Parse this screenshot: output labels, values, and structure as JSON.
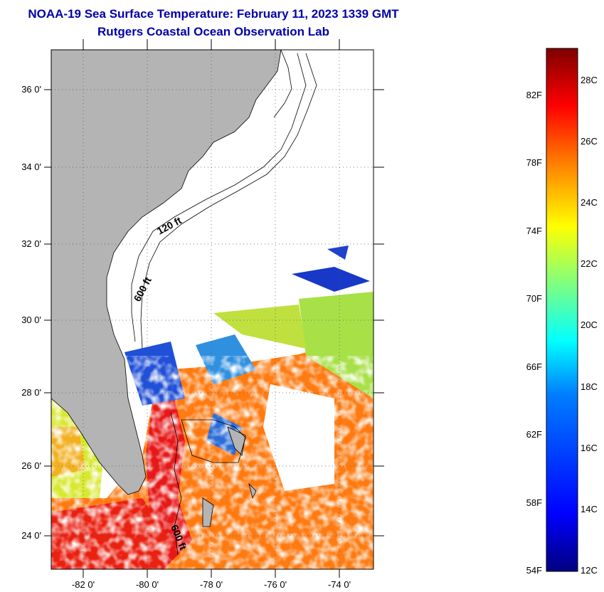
{
  "title": "NOAA-19 Sea Surface Temperature:  February 11, 2023 1339 GMT",
  "subtitle": "Rutgers Coastal Ocean Observation Lab",
  "map": {
    "lon_range": [
      -83,
      -73
    ],
    "lat_range": [
      23,
      37
    ],
    "lon_ticks": [
      {
        "value": -82,
        "label": "-82 0'"
      },
      {
        "value": -80,
        "label": "-80 0'"
      },
      {
        "value": -78,
        "label": "-78 0'"
      },
      {
        "value": -76,
        "label": "-76 0'"
      },
      {
        "value": -74,
        "label": "-74 0'"
      }
    ],
    "lat_ticks": [
      {
        "value": 24,
        "label": "24 0'"
      },
      {
        "value": 26,
        "label": "26 0'"
      },
      {
        "value": 28,
        "label": "28 0'"
      },
      {
        "value": 30,
        "label": "30 0'"
      },
      {
        "value": 32,
        "label": "32 0'"
      },
      {
        "value": 34,
        "label": "34 0'"
      },
      {
        "value": 36,
        "label": "36 0'"
      }
    ],
    "contour_labels": [
      "120 ft",
      "600 ft",
      "600 ft"
    ],
    "colors": {
      "land": "#b4b4b4",
      "cloud": "#ffffff"
    }
  },
  "colorbar": {
    "fahrenheit_ticks": [
      "54F",
      "58F",
      "62F",
      "66F",
      "70F",
      "74F",
      "78F",
      "82F"
    ],
    "celsius_ticks": [
      "12C",
      "14C",
      "16C",
      "18C",
      "20C",
      "22C",
      "24C",
      "26C",
      "28C"
    ],
    "range_c": [
      12,
      29.2
    ],
    "colors": [
      "#00007f",
      "#0000ff",
      "#007fff",
      "#00ffff",
      "#7fff7f",
      "#ffff00",
      "#ff7f00",
      "#ff0000",
      "#7f0000"
    ]
  }
}
